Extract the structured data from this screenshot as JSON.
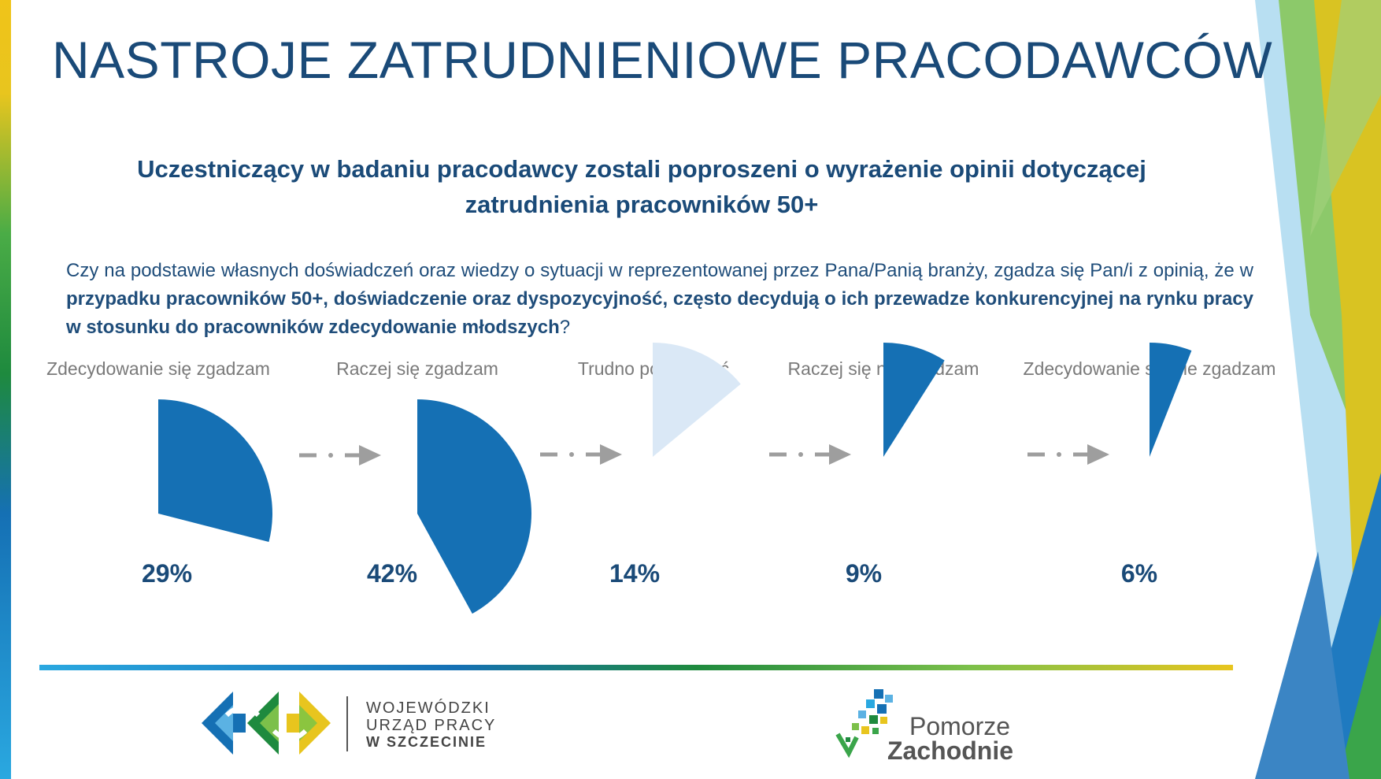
{
  "slide": {
    "title": "NASTROJE ZATRUDNIENIOWE PRACODAWCÓW",
    "subtitle": "Uczestniczący w badaniu pracodawcy zostali poproszeni o wyrażenie opinii dotyczącej zatrudnienia pracowników 50+",
    "question": {
      "part1": "Czy na podstawie własnych doświadczeń oraz wiedzy o sytuacji w reprezentowanej przez Pana/Panią branży, zgadza się Pan/i z opinią, że w ",
      "bold": "przypadku pracowników 50+, doświadczenie oraz dyspozycyjność, często decydują o ich przewadze konkurencyjnej na rynku pracy w stosunku do pracowników zdecydowanie młodszych",
      "part2": "?"
    }
  },
  "chart_data": {
    "type": "pie",
    "categories": [
      "Zdecydowanie się zgadzam",
      "Raczej się zgadzam",
      "Trudno powiedzieć",
      "Raczej się nie zgadzam",
      "Zdecydowanie się nie zgadzam"
    ],
    "values": [
      29,
      42,
      14,
      9,
      6
    ],
    "value_labels": [
      "29%",
      "42%",
      "14%",
      "9%",
      "6%"
    ],
    "colors": [
      "#1570b4",
      "#1570b4",
      "#dae8f6",
      "#1570b4",
      "#1570b4"
    ],
    "arrow_color": "#9e9e9e"
  },
  "logos": {
    "wup": {
      "line1": "WOJEWÓDZKI",
      "line2": "URZĄD PRACY",
      "line3": "W  SZCZECINIE"
    },
    "pomorze": {
      "line1": "Pomorze",
      "line2": "Zachodnie"
    }
  },
  "theme": {
    "title_color": "#1a4a78",
    "accent_blue": "#1570b4",
    "light_blue": "#dae8f6",
    "green": "#3aa54a",
    "yellow": "#e8c51e"
  }
}
